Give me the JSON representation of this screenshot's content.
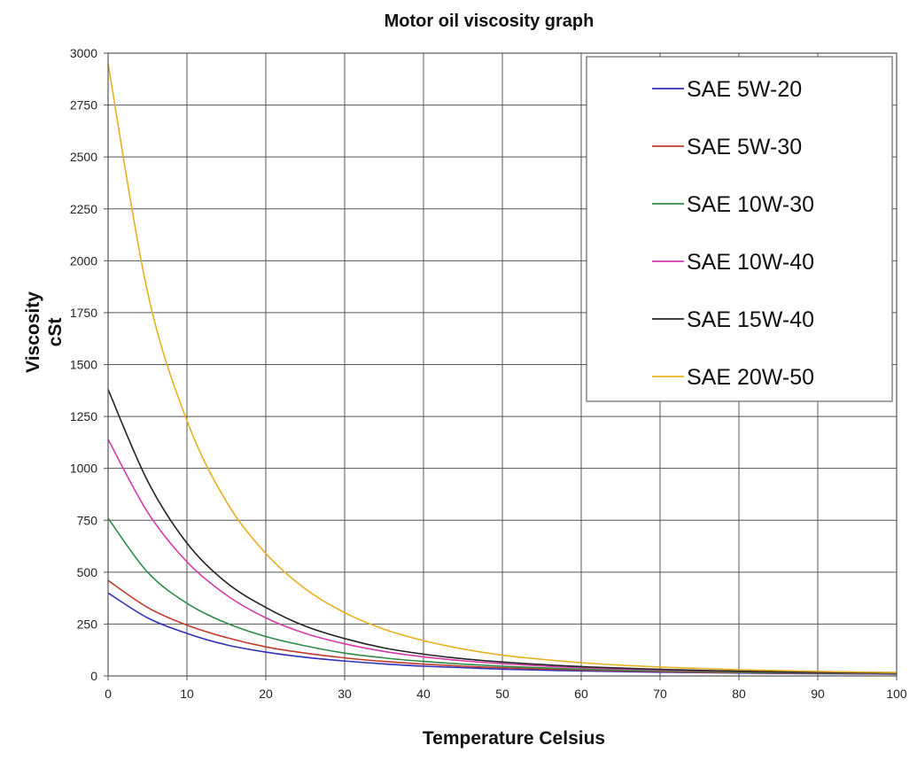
{
  "chart_data": {
    "type": "line",
    "title": "Motor oil viscosity graph",
    "xlabel": "Temperature Celsius",
    "ylabel_lines": [
      "Viscosity",
      "cSt"
    ],
    "xlim": [
      0,
      100
    ],
    "ylim": [
      0,
      3000
    ],
    "xticks": [
      0,
      10,
      20,
      30,
      40,
      50,
      60,
      70,
      80,
      90,
      100
    ],
    "yticks": [
      0,
      250,
      500,
      750,
      1000,
      1250,
      1500,
      1750,
      2000,
      2250,
      2500,
      2750,
      3000
    ],
    "grid": true,
    "legend_position": "top-right",
    "x": [
      0,
      5,
      10,
      15,
      20,
      25,
      30,
      35,
      40,
      45,
      50,
      55,
      60,
      65,
      70,
      75,
      80,
      85,
      90,
      95,
      100
    ],
    "series": [
      {
        "name": "SAE 5W-20",
        "color": "#2f2fb8",
        "values": [
          400,
          280,
          205,
          150,
          115,
          90,
          72,
          58,
          47,
          40,
          33,
          28,
          24,
          21,
          18,
          16,
          14,
          12,
          11,
          10,
          9
        ]
      },
      {
        "name": "SAE 5W-30",
        "color": "#c0392b",
        "values": [
          460,
          330,
          245,
          185,
          140,
          110,
          87,
          70,
          57,
          47,
          40,
          34,
          29,
          25,
          21,
          18,
          16,
          14,
          13,
          12,
          11
        ]
      },
      {
        "name": "SAE 10W-30",
        "color": "#2e8b4a",
        "values": [
          760,
          500,
          350,
          255,
          190,
          145,
          110,
          87,
          70,
          57,
          47,
          39,
          33,
          28,
          24,
          21,
          18,
          16,
          14,
          13,
          12
        ]
      },
      {
        "name": "SAE 10W-40",
        "color": "#d63aa8",
        "values": [
          1140,
          790,
          550,
          390,
          280,
          205,
          155,
          118,
          92,
          73,
          59,
          48,
          40,
          34,
          29,
          25,
          22,
          19,
          17,
          15,
          14
        ]
      },
      {
        "name": "SAE 15W-40",
        "color": "#222222",
        "values": [
          1380,
          940,
          640,
          450,
          330,
          240,
          180,
          135,
          105,
          83,
          67,
          55,
          45,
          38,
          32,
          27,
          23,
          20,
          18,
          16,
          15
        ]
      },
      {
        "name": "SAE 20W-50",
        "color": "#e8b020",
        "values": [
          2950,
          1850,
          1230,
          840,
          590,
          420,
          305,
          225,
          170,
          130,
          100,
          80,
          64,
          52,
          43,
          36,
          30,
          26,
          22,
          19,
          17
        ]
      }
    ]
  }
}
